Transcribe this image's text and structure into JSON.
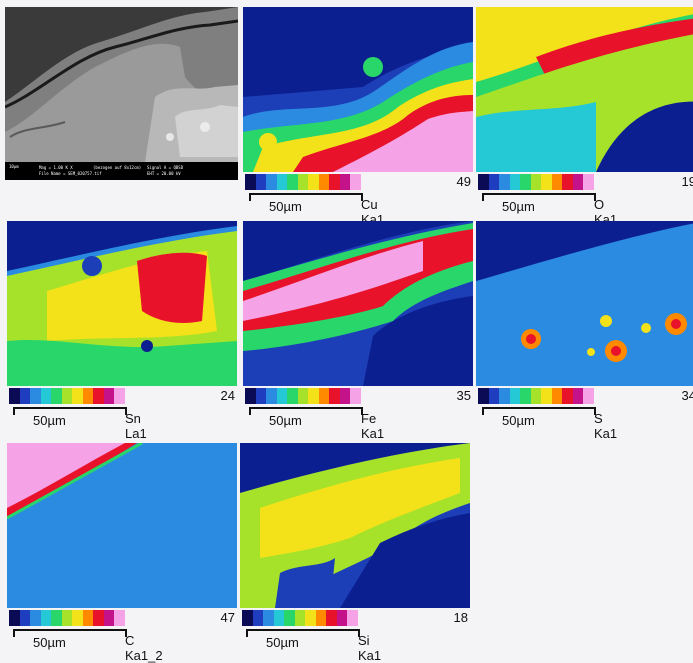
{
  "sem_image": {
    "info": {
      "scale": "10µm",
      "mag": "Mag = 1.00 K X",
      "file": "File Name = SEM_020757.tif",
      "signal": "Signal A = QBSD",
      "eht": "EHT = 20.00 kV",
      "note": "(bezogen auf 8x12cm)"
    }
  },
  "legend_colors": [
    "#0b0b55",
    "#1f3dbf",
    "#2a8be0",
    "#25c9d6",
    "#29d66a",
    "#a6e22a",
    "#f3e219",
    "#ff8a00",
    "#e8122a",
    "#c4138a",
    "#f5a3e6"
  ],
  "maps": [
    {
      "element": "Cu Ka1",
      "count": "49",
      "scale": "50µm"
    },
    {
      "element": "O Ka1",
      "count": "19",
      "scale": "50µm"
    },
    {
      "element": "Sn La1",
      "count": "24",
      "scale": "50µm"
    },
    {
      "element": "Fe Ka1",
      "count": "35",
      "scale": "50µm"
    },
    {
      "element": "S Ka1",
      "count": "34",
      "scale": "50µm"
    },
    {
      "element": "C Ka1_2",
      "count": "47",
      "scale": "50µm"
    },
    {
      "element": "Si Ka1",
      "count": "18",
      "scale": "50µm"
    }
  ]
}
